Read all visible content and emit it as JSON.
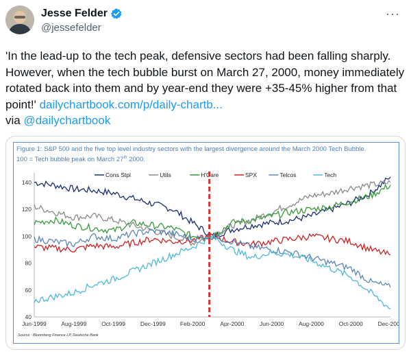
{
  "tweet": {
    "display_name": "Jesse Felder",
    "handle": "@jessefelder",
    "more_label": "···",
    "text_main": "'In the lead-up to the tech peak, defensive sectors had been falling sharply. However, when the tech bubble burst on March 27, 2000, money immediately rotated back into them and by year-end they were +35-45% higher from that point!' ",
    "link_text": "dailychartbook.com/p/daily-chartb...",
    "via_prefix": "via ",
    "via_handle": "@dailychartbook"
  },
  "colors": {
    "link": "#1d9bf0",
    "verified": "#1d9bf0",
    "title_blue": "#4a7fc4",
    "peak_line": "#d93030"
  },
  "figure": {
    "title_line1": "Figure 1: S&P 500 and the five top level industry sectors with the largest divergence around the March 2000 Tech Bubble.",
    "title_line2_a": "100 = Tech bubble peak on March 27",
    "title_line2_sup": "th",
    "title_line2_b": " 2000.",
    "source": "Source : Bloomberg Finance LP, Deutsche Bank"
  },
  "chart_data": {
    "type": "line",
    "x": [
      "Jun-1999",
      "Jul-1999",
      "Aug-1999",
      "Sep-1999",
      "Oct-1999",
      "Nov-1999",
      "Dec-1999",
      "Jan-2000",
      "Feb-2000",
      "Mar-2000",
      "Apr-2000",
      "May-2000",
      "Jun-2000",
      "Jul-2000",
      "Aug-2000",
      "Sep-2000",
      "Oct-2000",
      "Nov-2000",
      "Dec-2000"
    ],
    "xticks": [
      "Jun-1999",
      "Aug-1999",
      "Oct-1999",
      "Dec-1999",
      "Feb-2000",
      "Apr-2000",
      "Jun-2000",
      "Aug-2000",
      "Oct-2000",
      "Dec-2000"
    ],
    "ylim": [
      40,
      145
    ],
    "yticks": [
      40,
      60,
      80,
      100,
      120,
      140
    ],
    "peak_marker": "Mar-27-2000",
    "series": [
      {
        "name": "Cons Stpl",
        "color": "#1a2e6e",
        "values": [
          140,
          138,
          135,
          134,
          132,
          128,
          124,
          120,
          110,
          100,
          105,
          108,
          110,
          112,
          115,
          120,
          125,
          132,
          144
        ]
      },
      {
        "name": "Utils",
        "color": "#8a8a8a",
        "values": [
          122,
          118,
          114,
          115,
          112,
          108,
          104,
          100,
          95,
          100,
          108,
          112,
          118,
          124,
          130,
          132,
          136,
          138,
          140
        ]
      },
      {
        "name": "H'Care",
        "color": "#3a9a3a",
        "values": [
          110,
          112,
          108,
          106,
          104,
          110,
          108,
          106,
          100,
          100,
          110,
          112,
          115,
          118,
          120,
          122,
          126,
          130,
          138
        ]
      },
      {
        "name": "SPX",
        "color": "#cc2222",
        "values": [
          92,
          91,
          90,
          93,
          92,
          95,
          98,
          96,
          97,
          100,
          96,
          94,
          96,
          98,
          100,
          98,
          96,
          90,
          86
        ]
      },
      {
        "name": "Telcos",
        "color": "#5b86b8",
        "values": [
          98,
          96,
          94,
          100,
          98,
          102,
          104,
          102,
          98,
          100,
          96,
          92,
          90,
          88,
          84,
          80,
          76,
          66,
          62
        ]
      },
      {
        "name": "Tech",
        "color": "#4db8d8",
        "values": [
          52,
          55,
          58,
          64,
          68,
          74,
          80,
          86,
          92,
          100,
          90,
          84,
          88,
          86,
          82,
          76,
          70,
          58,
          46
        ]
      }
    ]
  }
}
